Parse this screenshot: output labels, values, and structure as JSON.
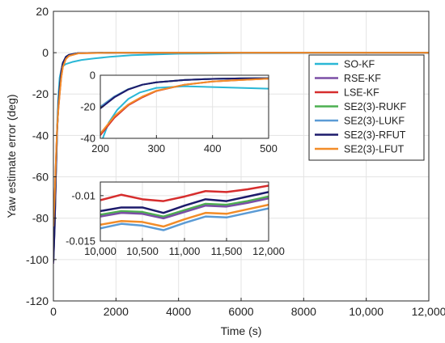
{
  "chart_data": {
    "type": "line",
    "xlabel": "Time (s)",
    "ylabel": "Yaw estimate error (deg)",
    "xlim": [
      0,
      12000
    ],
    "ylim": [
      -120,
      20
    ],
    "xticks": [
      0,
      2000,
      4000,
      6000,
      8000,
      10000,
      12000
    ],
    "xtick_labels": [
      "0",
      "2000",
      "4000",
      "6000",
      "8000",
      "10,000",
      "12,000"
    ],
    "yticks": [
      -120,
      -100,
      -80,
      -60,
      -40,
      -20,
      0,
      20
    ],
    "ytick_labels": [
      "-120",
      "-100",
      "-80",
      "-60",
      "-40",
      "-20",
      "0",
      "20"
    ],
    "grid": true,
    "legend_position": "top-right",
    "series": [
      {
        "name": "SO-KF",
        "color": "#2ab7d6",
        "x": [
          0,
          40,
          80,
          120,
          160,
          200,
          260,
          300,
          400,
          600,
          900,
          1300,
          1800,
          2500,
          4000,
          6000,
          9000,
          12000
        ],
        "y": [
          -100,
          -82,
          -55,
          -35,
          -21,
          -12,
          -8,
          -6.5,
          -5.5,
          -4.5,
          -3.5,
          -2.8,
          -2,
          -1.2,
          -0.5,
          -0.2,
          -0.1,
          -0.05
        ]
      },
      {
        "name": "RSE-KF",
        "color": "#7b4fa6",
        "x": [
          0,
          40,
          80,
          120,
          160,
          200,
          250,
          300,
          400,
          500,
          800,
          2000,
          12000
        ],
        "y": [
          -102,
          -85,
          -60,
          -38,
          -25,
          -17,
          -9,
          -5,
          -2,
          -1,
          -0.2,
          0,
          0
        ]
      },
      {
        "name": "LSE-KF",
        "color": "#d62d2d",
        "x": [
          0,
          40,
          80,
          120,
          160,
          200,
          250,
          300,
          400,
          500,
          800,
          2000,
          12000
        ],
        "y": [
          -85,
          -70,
          -52,
          -36,
          -27,
          -20,
          -12,
          -7,
          -3,
          -1.5,
          -0.3,
          0,
          0
        ]
      },
      {
        "name": "SE2(3)-RUKF",
        "color": "#4caf50",
        "x": [
          0,
          40,
          80,
          120,
          160,
          200,
          250,
          300,
          400,
          500,
          800,
          2000,
          12000
        ],
        "y": [
          -100,
          -84,
          -58,
          -37,
          -25,
          -17,
          -9,
          -5,
          -2,
          -1,
          -0.2,
          0,
          0
        ]
      },
      {
        "name": "SE2(3)-LUKF",
        "color": "#5b9bd5",
        "x": [
          0,
          40,
          80,
          120,
          160,
          200,
          250,
          300,
          400,
          500,
          800,
          2000,
          12000
        ],
        "y": [
          -96,
          -80,
          -56,
          -36,
          -25,
          -17,
          -9,
          -5,
          -2,
          -1,
          -0.2,
          0,
          0
        ]
      },
      {
        "name": "SE2(3)-RFUT",
        "color": "#1c1a6b",
        "x": [
          0,
          40,
          80,
          120,
          160,
          200,
          250,
          300,
          400,
          500,
          800,
          2000,
          12000
        ],
        "y": [
          -101,
          -85,
          -59,
          -37,
          -25,
          -17,
          -9,
          -5,
          -2,
          -1,
          -0.2,
          0,
          0
        ]
      },
      {
        "name": "SE2(3)-LFUT",
        "color": "#f28c28",
        "x": [
          0,
          40,
          80,
          120,
          160,
          200,
          250,
          300,
          400,
          500,
          800,
          2000,
          12000
        ],
        "y": [
          -84,
          -70,
          -52,
          -36,
          -27,
          -20,
          -12,
          -7,
          -3,
          -1.5,
          -0.3,
          0,
          0
        ]
      }
    ],
    "insets": [
      {
        "xlim": [
          200,
          500
        ],
        "ylim": [
          -40,
          0
        ],
        "xticks": [
          200,
          300,
          400,
          500
        ],
        "xtick_labels": [
          "200",
          "300",
          "400",
          "500"
        ],
        "yticks": [
          -40,
          -20,
          0
        ],
        "ytick_labels": [
          "-40",
          "-20",
          "0"
        ],
        "series": [
          {
            "name": "SO-KF",
            "x": [
              200,
              215,
              230,
              250,
              270,
              300,
              350,
              400,
              450,
              500
            ],
            "y": [
              -44,
              -30,
              -22,
              -15,
              -11,
              -8,
              -7,
              -7.5,
              -8,
              -8.5
            ]
          },
          {
            "name": "RSE-KF",
            "x": [
              200,
              225,
              250,
              275,
              300,
              350,
              400,
              450,
              500
            ],
            "y": [
              -21,
              -14,
              -9,
              -6,
              -4.5,
              -3,
              -2.3,
              -2,
              -1.9
            ]
          },
          {
            "name": "LSE-KF",
            "x": [
              200,
              225,
              250,
              275,
              300,
              350,
              400,
              450,
              500
            ],
            "y": [
              -38,
              -27,
              -19,
              -14,
              -10,
              -6,
              -4,
              -3,
              -2.2
            ]
          },
          {
            "name": "SE2(3)-RUKF",
            "x": [
              200,
              225,
              250,
              275,
              300,
              350,
              400,
              450,
              500
            ],
            "y": [
              -20,
              -13.5,
              -8.8,
              -6,
              -4.5,
              -3,
              -2.3,
              -2,
              -1.9
            ]
          },
          {
            "name": "SE2(3)-LUKF",
            "x": [
              200,
              225,
              250,
              275,
              300,
              350,
              400,
              450,
              500
            ],
            "y": [
              -20,
              -13.5,
              -8.8,
              -6,
              -4.5,
              -3,
              -2.3,
              -2,
              -1.9
            ]
          },
          {
            "name": "SE2(3)-RFUT",
            "x": [
              200,
              225,
              250,
              275,
              300,
              350,
              400,
              450,
              500
            ],
            "y": [
              -21,
              -14,
              -9,
              -6,
              -4.5,
              -3,
              -2.3,
              -2,
              -1.9
            ]
          },
          {
            "name": "SE2(3)-LFUT",
            "x": [
              200,
              225,
              250,
              275,
              300,
              350,
              400,
              450,
              500
            ],
            "y": [
              -37,
              -26,
              -18.5,
              -13.5,
              -9.8,
              -6,
              -4,
              -3,
              -2.2
            ]
          }
        ]
      },
      {
        "xlim": [
          10000,
          12000
        ],
        "ylim": [
          -0.015,
          -0.0085
        ],
        "xticks": [
          10000,
          10500,
          11000,
          11500,
          12000
        ],
        "xtick_labels": [
          "10,000",
          "10,500",
          "11,000",
          "11,500",
          "12,000"
        ],
        "yticks": [
          -0.015,
          -0.01
        ],
        "ytick_labels": [
          "-0.015",
          "-0.01"
        ],
        "series": [
          {
            "name": "LSE-KF",
            "x": [
              10000,
              10250,
              10500,
              10750,
              11000,
              11250,
              11500,
              11750,
              12000
            ],
            "y": [
              -0.0105,
              -0.0099,
              -0.0104,
              -0.0106,
              -0.0101,
              -0.0095,
              -0.0096,
              -0.0093,
              -0.0089
            ]
          },
          {
            "name": "SE2(3)-RFUT",
            "x": [
              10000,
              10250,
              10500,
              10750,
              11000,
              11250,
              11500,
              11750,
              12000
            ],
            "y": [
              -0.0117,
              -0.0113,
              -0.0113,
              -0.0119,
              -0.0111,
              -0.0104,
              -0.0106,
              -0.0101,
              -0.0096
            ]
          },
          {
            "name": "SE2(3)-RUKF",
            "x": [
              10000,
              10250,
              10500,
              10750,
              11000,
              11250,
              11500,
              11750,
              12000
            ],
            "y": [
              -0.0121,
              -0.0117,
              -0.0118,
              -0.0123,
              -0.0116,
              -0.0109,
              -0.011,
              -0.0106,
              -0.0101
            ]
          },
          {
            "name": "RSE-KF",
            "x": [
              10000,
              10250,
              10500,
              10750,
              11000,
              11250,
              11500,
              11750,
              12000
            ],
            "y": [
              -0.0123,
              -0.0119,
              -0.012,
              -0.0125,
              -0.0118,
              -0.0111,
              -0.0112,
              -0.0108,
              -0.0103
            ]
          },
          {
            "name": "SE2(3)-LFUT",
            "x": [
              10000,
              10250,
              10500,
              10750,
              11000,
              11250,
              11500,
              11750,
              12000
            ],
            "y": [
              -0.0132,
              -0.0128,
              -0.0129,
              -0.0134,
              -0.0126,
              -0.0119,
              -0.012,
              -0.0115,
              -0.011
            ]
          },
          {
            "name": "SE2(3)-LUKF",
            "x": [
              10000,
              10250,
              10500,
              10750,
              11000,
              11250,
              11500,
              11750,
              12000
            ],
            "y": [
              -0.0136,
              -0.0131,
              -0.0133,
              -0.0138,
              -0.013,
              -0.0123,
              -0.0124,
              -0.0119,
              -0.0114
            ]
          }
        ]
      }
    ]
  }
}
